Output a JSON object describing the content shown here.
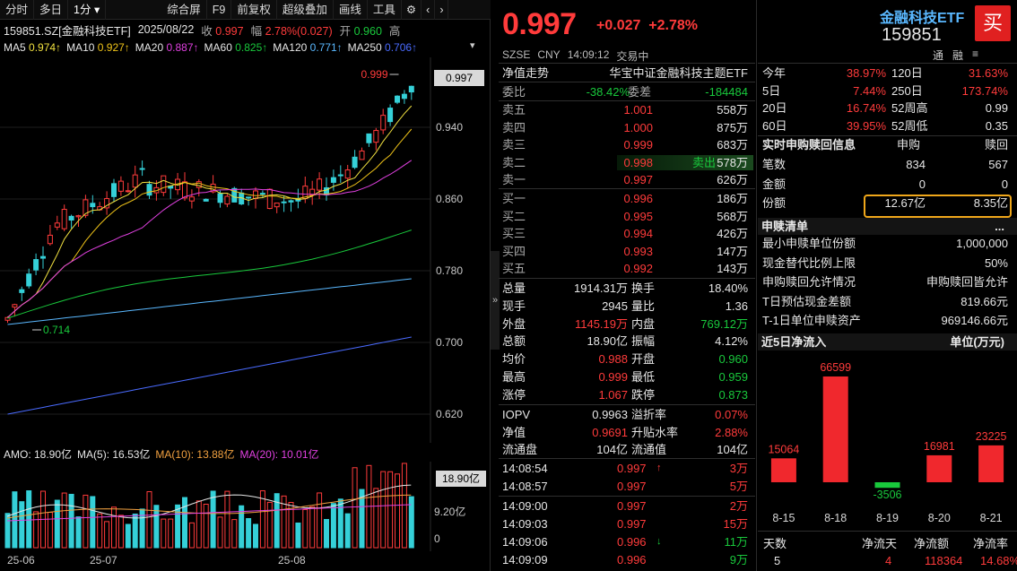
{
  "toolbar": {
    "items": [
      "分时",
      "多日",
      "1分",
      "▾",
      "综合屏",
      "F9",
      "前复权",
      "超级叠加",
      "画线",
      "工具"
    ],
    "gear_icon": "gear-icon",
    "prev_icon": "chevron-left-icon",
    "next_icon": "chevron-right-icon"
  },
  "info": {
    "code": "159851.SZ[金融科技ETF]",
    "date": "2025/08/22",
    "close_label": "收",
    "close_value": "0.997",
    "range_label": "幅",
    "range_value": "2.78%(0.027)",
    "open_label": "开",
    "open_value": "0.960",
    "high_label": "高"
  },
  "ma_line": [
    {
      "label": "MA5",
      "value": "0.974↑",
      "color": "#f0e040"
    },
    {
      "label": "MA10",
      "value": "0.927↑",
      "color": "#f0c419"
    },
    {
      "label": "MA20",
      "value": "0.887↑",
      "color": "#e040e0"
    },
    {
      "label": "MA60",
      "value": "0.825↑",
      "color": "#19c93c"
    },
    {
      "label": "MA120",
      "value": "0.771↑",
      "color": "#5ab8ff"
    },
    {
      "label": "MA250",
      "value": "0.706↑",
      "color": "#4a6bff"
    }
  ],
  "chart": {
    "current_price_tag": "0.997",
    "y_ticks": [
      "0.940",
      "0.860",
      "0.780",
      "0.700",
      "0.620"
    ],
    "high_mark": "0.999",
    "low_mark": "0.714"
  },
  "amo": {
    "label": "AMO: 18.90亿",
    "ma5": "MA(5): 16.53亿",
    "ma10": "MA(10): 13.88亿",
    "ma20": "MA(20): 10.01亿",
    "current_tag": "18.90亿",
    "mid_tick": "9.20亿",
    "zero_tick": "0"
  },
  "x_axis": [
    "25-06",
    "25-07",
    "25-08"
  ],
  "quote": {
    "price": "0.997",
    "change": "+0.027",
    "pct": "+2.78%",
    "market": "SZSE",
    "currency": "CNY",
    "time": "14:09:12",
    "status": "交易中",
    "netval_label": "净值走势",
    "fund_name": "华宝中证金融科技主题ETF"
  },
  "order_book": {
    "weibi_label": "委比",
    "weibi_value": "-38.42%",
    "weicha_label": "委差",
    "weicha_value": "-184484",
    "asks": [
      {
        "label": "卖五",
        "price": "1.001",
        "vol": "558万"
      },
      {
        "label": "卖四",
        "price": "1.000",
        "vol": "875万"
      },
      {
        "label": "卖三",
        "price": "0.999",
        "vol": "683万"
      },
      {
        "label": "卖二",
        "price": "0.998",
        "vol": "578万",
        "note": "卖出"
      },
      {
        "label": "卖一",
        "price": "0.997",
        "vol": "626万"
      }
    ],
    "bids": [
      {
        "label": "买一",
        "price": "0.996",
        "vol": "186万"
      },
      {
        "label": "买二",
        "price": "0.995",
        "vol": "568万"
      },
      {
        "label": "买三",
        "price": "0.994",
        "vol": "426万"
      },
      {
        "label": "买四",
        "price": "0.993",
        "vol": "147万"
      },
      {
        "label": "买五",
        "price": "0.992",
        "vol": "143万"
      }
    ]
  },
  "stats": [
    {
      "l1": "总量",
      "v1": "1914.31万",
      "c1": "wht",
      "l2": "换手",
      "v2": "18.40%",
      "c2": "wht"
    },
    {
      "l1": "现手",
      "v1": "2945",
      "c1": "wht",
      "l2": "量比",
      "v2": "1.36",
      "c2": "wht"
    },
    {
      "l1": "外盘",
      "v1": "1145.19万",
      "c1": "red",
      "l2": "内盘",
      "v2": "769.12万",
      "c2": "grn"
    },
    {
      "l1": "总额",
      "v1": "18.90亿",
      "c1": "wht",
      "l2": "振幅",
      "v2": "4.12%",
      "c2": "wht"
    },
    {
      "l1": "均价",
      "v1": "0.988",
      "c1": "red",
      "l2": "开盘",
      "v2": "0.960",
      "c2": "grn"
    },
    {
      "l1": "最高",
      "v1": "0.999",
      "c1": "red",
      "l2": "最低",
      "v2": "0.959",
      "c2": "grn"
    },
    {
      "l1": "涨停",
      "v1": "1.067",
      "c1": "red",
      "l2": "跌停",
      "v2": "0.873",
      "c2": "grn"
    }
  ],
  "iopv": [
    {
      "l1": "IOPV",
      "v1": "0.9963",
      "c1": "wht",
      "l2": "溢折率",
      "v2": "0.07%",
      "c2": "red"
    },
    {
      "l1": "净值",
      "v1": "0.9691",
      "c1": "red",
      "l2": "升贴水率",
      "v2": "2.88%",
      "c2": "red"
    },
    {
      "l1": "流通盘",
      "v1": "104亿",
      "c1": "wht",
      "l2": "流通值",
      "v2": "104亿",
      "c2": "wht"
    }
  ],
  "ticks": [
    {
      "time": "14:08:54",
      "price": "0.997",
      "arrow": "↑",
      "vol": "3万",
      "vc": "red"
    },
    {
      "time": "14:08:57",
      "price": "0.997",
      "arrow": "",
      "vol": "5万",
      "vc": "red"
    },
    {
      "time": "14:09:00",
      "price": "0.997",
      "arrow": "",
      "vol": "2万",
      "vc": "red"
    },
    {
      "time": "14:09:03",
      "price": "0.997",
      "arrow": "",
      "vol": "15万",
      "vc": "red"
    },
    {
      "time": "14:09:06",
      "price": "0.996",
      "arrow": "↓",
      "vol": "11万",
      "vc": "grn"
    },
    {
      "time": "14:09:09",
      "price": "0.996",
      "arrow": "",
      "vol": "9万",
      "vc": "grn"
    }
  ],
  "right": {
    "name": "金融科技ETF",
    "code": "159851",
    "buy_label": "买",
    "tools": [
      "通",
      "融",
      "≡"
    ],
    "perf": [
      {
        "l1": "今年",
        "v1": "38.97%",
        "c1": "red",
        "l2": "120日",
        "v2": "31.63%",
        "c2": "red"
      },
      {
        "l1": "5日",
        "v1": "7.44%",
        "c1": "red",
        "l2": "250日",
        "v2": "173.74%",
        "c2": "red"
      },
      {
        "l1": "20日",
        "v1": "16.74%",
        "c1": "red",
        "l2": "52周高",
        "v2": "0.99",
        "c2": "wht"
      },
      {
        "l1": "60日",
        "v1": "39.95%",
        "c1": "red",
        "l2": "52周低",
        "v2": "0.35",
        "c2": "wht"
      }
    ],
    "sg_head": "实时申购赎回信息",
    "sg_col1": "申购",
    "sg_col2": "赎回",
    "sg_rows": [
      {
        "label": "笔数",
        "a": "834",
        "b": "567"
      },
      {
        "label": "金额",
        "a": "0",
        "b": "0"
      },
      {
        "label": "份额",
        "a": "12.67亿",
        "b": "8.35亿"
      }
    ],
    "list_head": "申赎清单",
    "list_more": "...",
    "list_rows": [
      {
        "label": "最小申赎单位份额",
        "value": "1,000,000"
      },
      {
        "label": "现金替代比例上限",
        "value": "50%"
      },
      {
        "label": "申购赎回允许情况",
        "value": "申购赎回皆允许"
      },
      {
        "label": "T日预估现金差额",
        "value": "819.66元"
      },
      {
        "label": "T-1日单位申赎资产",
        "value": "969146.66元"
      }
    ],
    "flow_head": "近5日净流入",
    "flow_unit": "单位(万元)",
    "flow_foot_labels": [
      "天数",
      "净流天",
      "净流额",
      "净流率"
    ],
    "flow_foot_values": [
      "5",
      "4",
      "118364",
      "14.68%"
    ],
    "highlight_color": "#f0a71a"
  },
  "chart_data": {
    "type": "bar",
    "title": "近5日净流入",
    "ylabel": "单位(万元)",
    "categories": [
      "8-15",
      "8-18",
      "8-19",
      "8-20",
      "8-21"
    ],
    "values": [
      15064,
      66599,
      -3506,
      16981,
      23225
    ]
  }
}
